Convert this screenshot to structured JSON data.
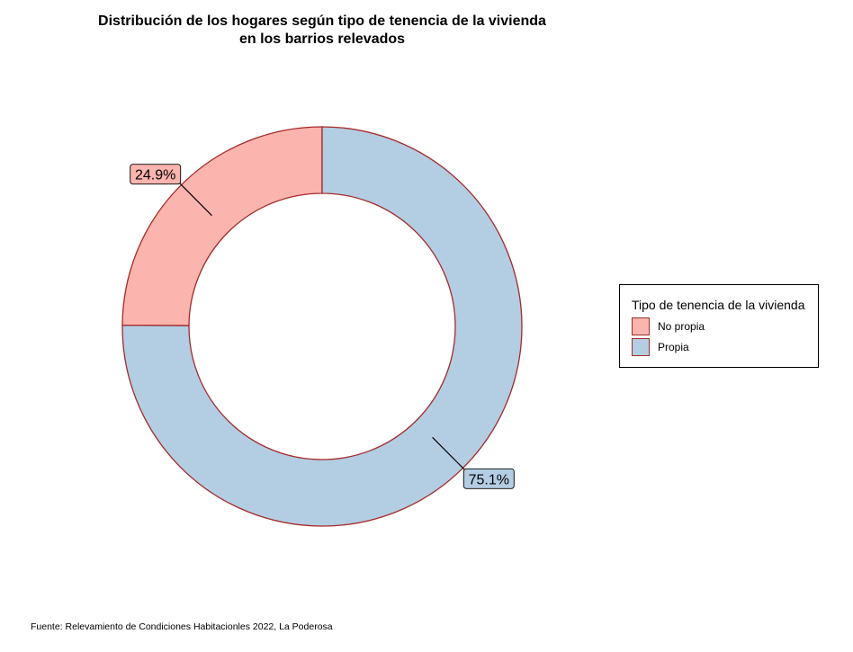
{
  "chart_data": {
    "type": "pie",
    "donut": true,
    "title_lines": [
      "Distribución de los hogares según tipo de tenencia de la vivienda",
      "en los barrios relevados"
    ],
    "legend_title": "Tipo de tenencia de la vivienda",
    "legend_position": "right",
    "caption": "Fuente: Relevamiento de Condiciones Habitacionles 2022, La Poderosa",
    "categories": [
      "No propia",
      "Propia"
    ],
    "values": [
      24.9,
      75.1
    ],
    "labels": [
      "24.9%",
      "75.1%"
    ],
    "colors": [
      "#FBB4AE",
      "#B3CDE3"
    ],
    "border_color": "#A52A2A"
  }
}
